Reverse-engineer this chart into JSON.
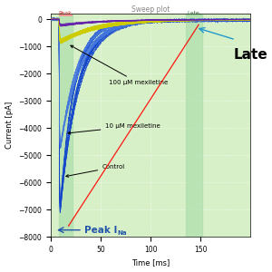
{
  "title": "Sweep plot",
  "xlabel": "Time [ms]",
  "ylabel": "Current [pA]",
  "xlim": [
    0,
    200
  ],
  "ylim": [
    -8000,
    200
  ],
  "yticks": [
    0,
    -1000,
    -2000,
    -3000,
    -4000,
    -5000,
    -6000,
    -7000,
    -8000
  ],
  "xticks": [
    0,
    50,
    100,
    150
  ],
  "bg_color": "#d8f0c8",
  "peak_region": [
    8,
    22
  ],
  "late_region": [
    135,
    152
  ],
  "control_color": "#1144cc",
  "mex10_color": "#3366ee",
  "mex100_color": "#cccc00",
  "purple_color": "#6622aa",
  "label_100": "100 μM mexiletine",
  "label_10": "10 μM mexiletine",
  "label_control": "Control",
  "label_late": "Late"
}
